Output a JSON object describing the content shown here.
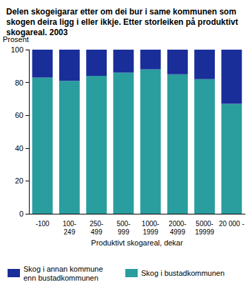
{
  "chart_data": {
    "type": "bar",
    "title": "Delen skogeigarar etter om dei bur i same kommunen som skogen deira ligg i eller ikkje. Etter storleiken på produktivt skogareal. 2003",
    "x_label": "Produktivt skogareal, dekar",
    "y_label": "Prosent",
    "categories": [
      "-100",
      "100-249",
      "250-499",
      "500-999",
      "1000-1999",
      "2000-4999",
      "5000-19999",
      "20 000 -"
    ],
    "series": [
      {
        "name": "Skog i bustadkommunen",
        "color": "#2a9d9f",
        "values": [
          83,
          81,
          84,
          86,
          88,
          85,
          82,
          67
        ]
      },
      {
        "name": "Skog i annan kommune enn bustadkommunen",
        "color": "#1a2e9a",
        "values": [
          17,
          19,
          16,
          14,
          12,
          15,
          18,
          33
        ]
      }
    ],
    "stacked": true,
    "ylim": [
      0,
      100
    ],
    "yticks": [
      0,
      20,
      40,
      60,
      80,
      100
    ],
    "grid": false,
    "legend": "bottom"
  }
}
